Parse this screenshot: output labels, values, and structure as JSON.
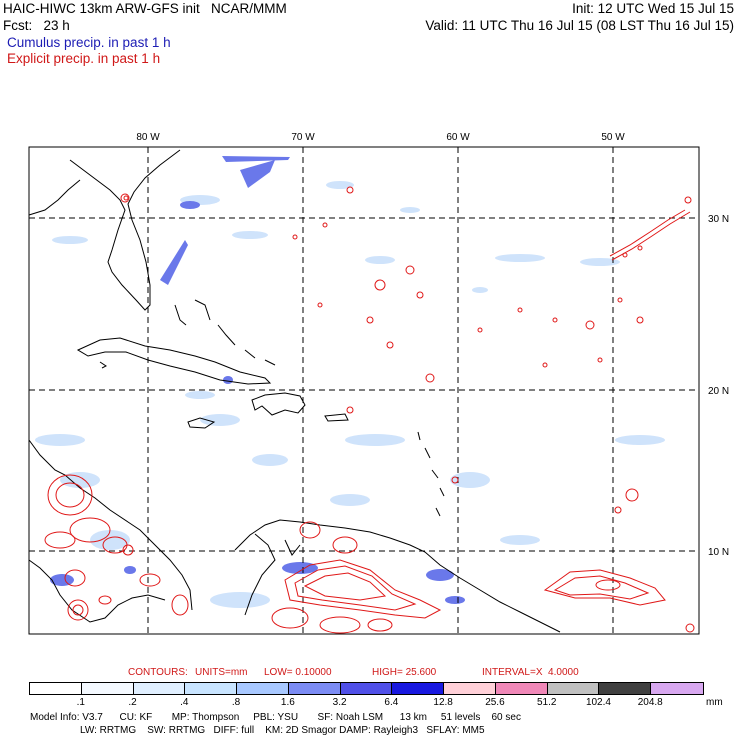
{
  "header": {
    "line1_left": "HAIC-HIWC 13km ARW-GFS init   NCAR/MMM",
    "line1_right": "Init: 12 UTC Wed 15 Jul 15",
    "line2_left": "Fcst:   23 h",
    "line2_right": "Valid: 11 UTC Thu 16 Jul 15 (08 LST Thu 16 Jul 15)",
    "legend_cumulus": "Cumulus precip. in past 1 h",
    "legend_explicit": "Explicit precip. in past 1 h"
  },
  "map": {
    "lon_labels": [
      "80 W",
      "70 W",
      "60 W",
      "50 W"
    ],
    "lat_labels": [
      "30 N",
      "20 N",
      "10 N"
    ]
  },
  "contours": {
    "label": "CONTOURS:",
    "units": "UNITS=mm",
    "low": "LOW= 0.10000",
    "high": "HIGH= 25.600",
    "interval": "INTERVAL=X  4.0000"
  },
  "colorbar": {
    "unit": "mm",
    "labels": [
      ".1",
      ".2",
      ".4",
      ".8",
      "1.6",
      "3.2",
      "6.4",
      "12.8",
      "25.6",
      "51.2",
      "102.4",
      "204.8"
    ],
    "colors": [
      "#ffffff",
      "#f4f9ff",
      "#e0efff",
      "#c8e4ff",
      "#a8c8ff",
      "#7c8cf4",
      "#5050e8",
      "#1818e0",
      "#ffd0d8",
      "#f088b8",
      "#c0c0c0",
      "#404040",
      "#d8a8f0"
    ]
  },
  "footer": {
    "line1": "Model Info: V3.7      CU: KF       MP: Thompson     PBL: YSU       SF: Noah LSM      13 km     51 levels    60 sec",
    "line2": "                  LW: RRTMG    SW: RRTMG   DIFF: full    KM: 2D Smagor DAMP: Rayleigh3   SFLAY: MM5"
  }
}
